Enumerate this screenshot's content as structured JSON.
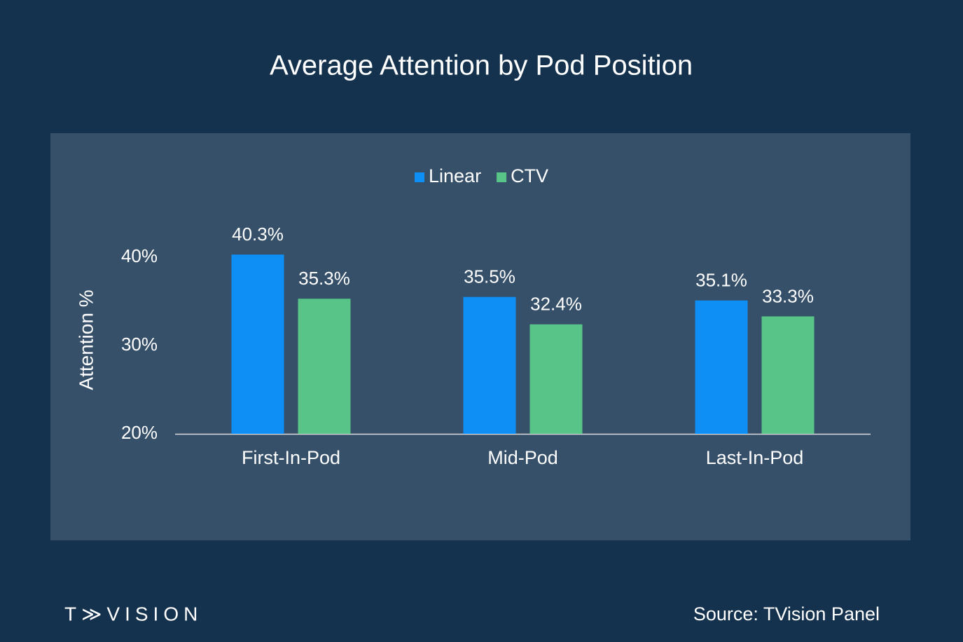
{
  "chart_data": {
    "type": "bar",
    "title": "Average Attention by Pod Position",
    "y_label": "Attention %",
    "categories": [
      "First-In-Pod",
      "Mid-Pod",
      "Last-In-Pod"
    ],
    "series": [
      {
        "name": "Linear",
        "color": "#0d8ff5",
        "values": [
          40.3,
          35.5,
          35.1
        ],
        "value_labels": [
          "40.3%",
          "35.5%",
          "35.1%"
        ]
      },
      {
        "name": "CTV",
        "color": "#58c487",
        "values": [
          35.3,
          32.4,
          33.3
        ],
        "value_labels": [
          "35.3%",
          "32.4%",
          "33.3%"
        ]
      }
    ],
    "ylim": [
      20,
      40
    ],
    "yticks": [
      {
        "value": 20,
        "label": "20%"
      },
      {
        "value": 30,
        "label": "30%"
      },
      {
        "value": 40,
        "label": "40%"
      }
    ],
    "grid": false,
    "legend": "top"
  },
  "footer": {
    "logo": "T≫VISION",
    "source": "Source: TVision Panel"
  }
}
